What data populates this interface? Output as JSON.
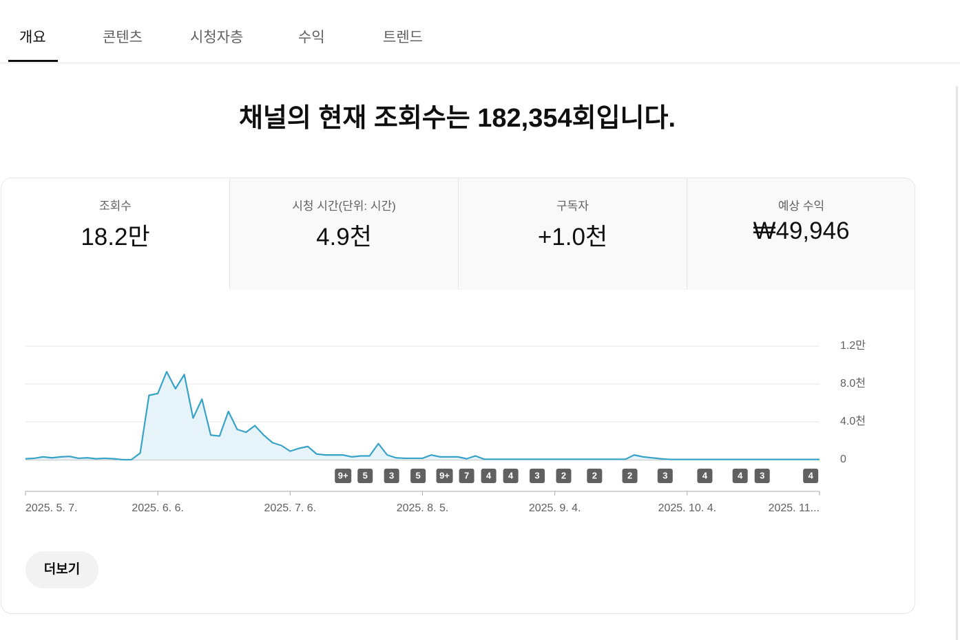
{
  "tabs": [
    "개요",
    "콘텐츠",
    "시청자층",
    "수익",
    "트렌드"
  ],
  "headline": "채널의 현재 조회수는 182,354회입니다.",
  "metrics": [
    {
      "label": "조회수",
      "value": "18.2만"
    },
    {
      "label": "시청 시간(단위: 시간)",
      "value": "4.9천"
    },
    {
      "label": "구독자",
      "value": "+1.0천"
    },
    {
      "label": "예상 수익",
      "value": "₩49,946"
    }
  ],
  "chart_data": {
    "type": "line",
    "color": "#36a3c6",
    "fill": "#e6f3f9",
    "grid": true,
    "x": [
      "2025-05-07",
      "2025-05-09",
      "2025-05-11",
      "2025-05-13",
      "2025-05-15",
      "2025-05-17",
      "2025-05-19",
      "2025-05-21",
      "2025-05-23",
      "2025-05-25",
      "2025-05-27",
      "2025-05-29",
      "2025-05-31",
      "2025-06-02",
      "2025-06-04",
      "2025-06-06",
      "2025-06-08",
      "2025-06-10",
      "2025-06-12",
      "2025-06-14",
      "2025-06-16",
      "2025-06-18",
      "2025-06-20",
      "2025-06-22",
      "2025-06-24",
      "2025-06-26",
      "2025-06-28",
      "2025-06-30",
      "2025-07-02",
      "2025-07-04",
      "2025-07-06",
      "2025-07-08",
      "2025-07-10",
      "2025-07-12",
      "2025-07-14",
      "2025-07-16",
      "2025-07-18",
      "2025-07-20",
      "2025-07-22",
      "2025-07-24",
      "2025-07-26",
      "2025-07-28",
      "2025-07-30",
      "2025-08-01",
      "2025-08-03",
      "2025-08-05",
      "2025-08-07",
      "2025-08-09",
      "2025-08-11",
      "2025-08-13",
      "2025-08-15",
      "2025-08-17",
      "2025-08-19",
      "2025-08-21",
      "2025-08-23",
      "2025-08-25",
      "2025-08-27",
      "2025-08-29",
      "2025-08-31",
      "2025-09-02",
      "2025-09-04",
      "2025-09-06",
      "2025-09-08",
      "2025-09-10",
      "2025-09-12",
      "2025-09-14",
      "2025-09-16",
      "2025-09-18",
      "2025-09-20",
      "2025-09-22",
      "2025-09-24",
      "2025-09-26",
      "2025-09-28",
      "2025-09-30",
      "2025-10-02",
      "2025-10-04",
      "2025-10-06",
      "2025-10-08",
      "2025-10-10",
      "2025-10-12",
      "2025-10-14",
      "2025-10-16",
      "2025-10-18",
      "2025-10-20",
      "2025-10-22",
      "2025-10-24",
      "2025-10-26",
      "2025-10-28",
      "2025-10-30",
      "2025-11-01",
      "2025-11-03"
    ],
    "values": [
      100,
      150,
      300,
      200,
      300,
      350,
      150,
      200,
      100,
      150,
      100,
      0,
      0,
      700,
      6800,
      7000,
      9300,
      7500,
      9000,
      4400,
      6400,
      2600,
      2500,
      5100,
      3200,
      2900,
      3600,
      2600,
      1800,
      1500,
      900,
      1200,
      1400,
      600,
      500,
      500,
      500,
      300,
      400,
      400,
      1700,
      500,
      200,
      150,
      150,
      150,
      500,
      300,
      300,
      300,
      100,
      400,
      50,
      50,
      50,
      50,
      50,
      50,
      50,
      50,
      50,
      50,
      50,
      50,
      50,
      50,
      50,
      50,
      50,
      500,
      300,
      200,
      100,
      30,
      30,
      30,
      30,
      30,
      30,
      30,
      30,
      30,
      30,
      30,
      30,
      30,
      30,
      30,
      30,
      30,
      30
    ],
    "xlim": [
      "2025-05-07",
      "2025-11-03"
    ],
    "xticks": [
      {
        "value": "2025-05-07",
        "label": "2025. 5. 7."
      },
      {
        "value": "2025-06-06",
        "label": "2025. 6. 6."
      },
      {
        "value": "2025-07-06",
        "label": "2025. 7. 6."
      },
      {
        "value": "2025-08-05",
        "label": "2025. 8. 5."
      },
      {
        "value": "2025-09-04",
        "label": "2025. 9. 4."
      },
      {
        "value": "2025-10-04",
        "label": "2025. 10. 4."
      },
      {
        "value": "2025-11-03",
        "label": "2025. 11..."
      }
    ],
    "ylim": [
      0,
      12000
    ],
    "yticks": [
      {
        "value": 0,
        "label": "0"
      },
      {
        "value": 4000,
        "label": "4.0천"
      },
      {
        "value": 8000,
        "label": "8.0천"
      },
      {
        "value": 12000,
        "label": "1.2만"
      }
    ],
    "markers": [
      {
        "date": "2025-07-18",
        "label": "9+"
      },
      {
        "date": "2025-07-23",
        "label": "5"
      },
      {
        "date": "2025-07-29",
        "label": "3"
      },
      {
        "date": "2025-08-04",
        "label": "5"
      },
      {
        "date": "2025-08-10",
        "label": "9+"
      },
      {
        "date": "2025-08-15",
        "label": "7"
      },
      {
        "date": "2025-08-20",
        "label": "4"
      },
      {
        "date": "2025-08-25",
        "label": "4"
      },
      {
        "date": "2025-08-31",
        "label": "3"
      },
      {
        "date": "2025-09-06",
        "label": "2"
      },
      {
        "date": "2025-09-13",
        "label": "2"
      },
      {
        "date": "2025-09-21",
        "label": "2"
      },
      {
        "date": "2025-09-29",
        "label": "3"
      },
      {
        "date": "2025-10-08",
        "label": "4"
      },
      {
        "date": "2025-10-16",
        "label": "4"
      },
      {
        "date": "2025-10-21",
        "label": "3"
      },
      {
        "date": "2025-11-01",
        "label": "4"
      }
    ]
  },
  "more_button": "더보기"
}
